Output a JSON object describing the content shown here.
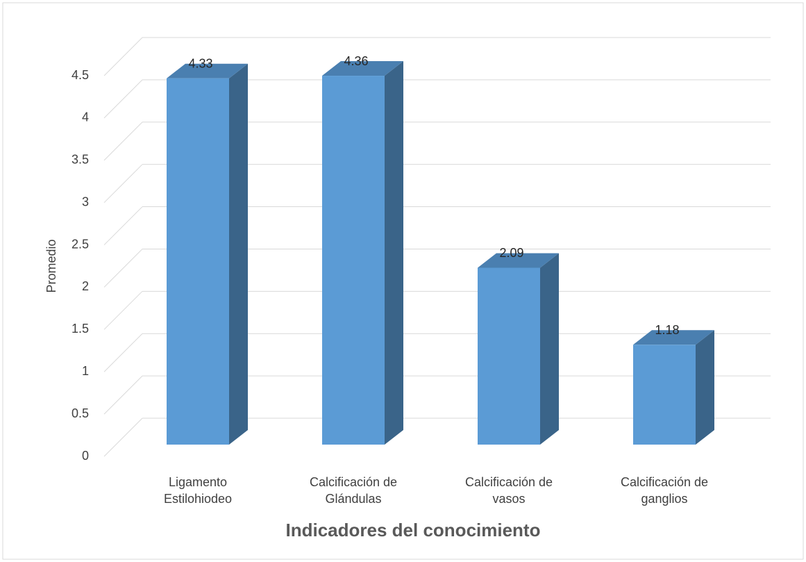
{
  "chart_data": {
    "type": "bar3d",
    "y_label": "Promedio",
    "x_label": "Indicadores del conocimiento",
    "categories": [
      "Ligamento Estilohiodeo",
      "Calcificación de Glándulas",
      "Calcificación de vasos",
      "Calcificación de ganglios"
    ],
    "values": [
      4.33,
      4.36,
      2.09,
      1.18
    ],
    "color": "#5b9bd5",
    "ylim": [
      0,
      4.5
    ],
    "yticks": [
      0,
      0.5,
      1,
      1.5,
      2,
      2.5,
      3,
      3.5,
      4,
      4.5
    ],
    "grid": true
  }
}
